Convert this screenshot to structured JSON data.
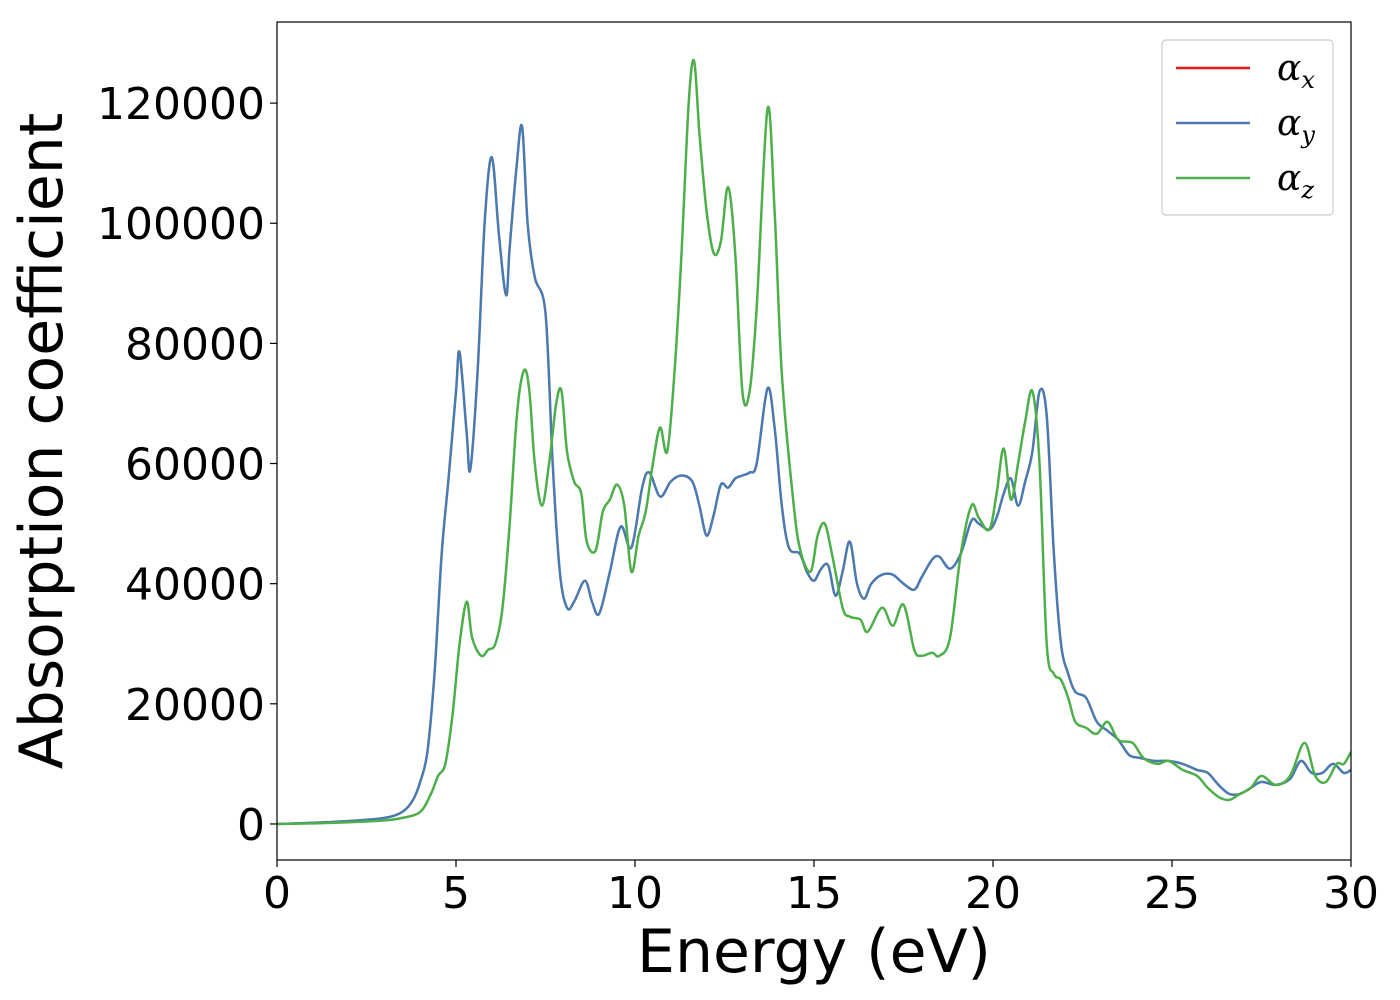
{
  "chart_data": {
    "type": "line",
    "xlabel": "Energy (eV)",
    "ylabel": "Absorption coefficient",
    "xlim": [
      0,
      30
    ],
    "ylim": [
      -6000,
      133500
    ],
    "xticks": [
      0,
      5,
      10,
      15,
      20,
      25,
      30
    ],
    "xtick_labels": [
      "0",
      "5",
      "10",
      "15",
      "20",
      "25",
      "30"
    ],
    "yticks": [
      0,
      20000,
      40000,
      60000,
      80000,
      100000,
      120000
    ],
    "ytick_labels": [
      "0",
      "20000",
      "40000",
      "60000",
      "80000",
      "100000",
      "120000"
    ],
    "grid": false,
    "legend_position": "top-right",
    "series": [
      {
        "name": "α_x",
        "symbol": "α",
        "subscript": "x",
        "color": "#e41a1c",
        "x": [
          0,
          1,
          2,
          3,
          3.5,
          3.8,
          4.0,
          4.2,
          4.4,
          4.6,
          4.8,
          5.0,
          5.1,
          5.3,
          5.4,
          5.6,
          5.8,
          6.0,
          6.2,
          6.4,
          6.5,
          6.7,
          6.85,
          7.0,
          7.2,
          7.5,
          7.7,
          7.9,
          8.1,
          8.3,
          8.6,
          8.8,
          9.0,
          9.3,
          9.6,
          9.9,
          10.2,
          10.4,
          10.7,
          11.0,
          11.3,
          11.6,
          11.8,
          12.0,
          12.2,
          12.4,
          12.6,
          12.8,
          13.0,
          13.2,
          13.4,
          13.7,
          13.9,
          14.1,
          14.3,
          14.6,
          14.8,
          15.0,
          15.2,
          15.4,
          15.6,
          15.8,
          16.0,
          16.2,
          16.4,
          16.6,
          16.9,
          17.2,
          17.5,
          17.8,
          18.0,
          18.3,
          18.5,
          18.8,
          19.1,
          19.4,
          19.6,
          19.9,
          20.1,
          20.3,
          20.5,
          20.7,
          20.9,
          21.1,
          21.3,
          21.5,
          21.7,
          21.9,
          22.1,
          22.3,
          22.6,
          22.9,
          23.2,
          23.5,
          23.8,
          24.1,
          24.5,
          24.9,
          25.3,
          25.7,
          26.0,
          26.3,
          26.6,
          26.9,
          27.2,
          27.5,
          27.9,
          28.3,
          28.6,
          28.9,
          29.2,
          29.5,
          29.8,
          30.0
        ],
        "y": [
          0,
          200,
          500,
          1000,
          2000,
          4000,
          7000,
          12000,
          25000,
          45000,
          58000,
          72000,
          78500,
          65000,
          59000,
          75000,
          100000,
          111000,
          98000,
          88000,
          96000,
          110000,
          116000,
          100000,
          91000,
          85000,
          60000,
          42000,
          36000,
          37000,
          40500,
          37000,
          35000,
          42000,
          49500,
          46000,
          56000,
          58500,
          54500,
          57000,
          58000,
          57000,
          53000,
          48000,
          51500,
          56500,
          56000,
          57500,
          58000,
          58500,
          60000,
          72500,
          66000,
          53000,
          46000,
          45000,
          42000,
          40500,
          42500,
          43000,
          38000,
          42000,
          47000,
          40000,
          37500,
          40000,
          41500,
          41500,
          40000,
          39000,
          41000,
          44000,
          44500,
          42500,
          45000,
          50500,
          50000,
          49000,
          51000,
          55000,
          57500,
          53000,
          57000,
          62000,
          72000,
          68000,
          45000,
          30000,
          25000,
          22000,
          21000,
          17000,
          15500,
          14000,
          11500,
          11000,
          10500,
          10500,
          10000,
          9000,
          8500,
          6500,
          5000,
          5000,
          6000,
          7000,
          6500,
          7500,
          10500,
          8500,
          8500,
          10000,
          8500,
          9000
        ],
        "line_width": 2
      },
      {
        "name": "α_y",
        "symbol": "α",
        "subscript": "y",
        "color": "#4b7ab0",
        "x": [
          0,
          1,
          2,
          3,
          3.5,
          3.8,
          4.0,
          4.2,
          4.4,
          4.6,
          4.8,
          5.0,
          5.1,
          5.3,
          5.4,
          5.6,
          5.8,
          6.0,
          6.2,
          6.4,
          6.5,
          6.7,
          6.85,
          7.0,
          7.2,
          7.5,
          7.7,
          7.9,
          8.1,
          8.3,
          8.6,
          8.8,
          9.0,
          9.3,
          9.6,
          9.9,
          10.2,
          10.4,
          10.7,
          11.0,
          11.3,
          11.6,
          11.8,
          12.0,
          12.2,
          12.4,
          12.6,
          12.8,
          13.0,
          13.2,
          13.4,
          13.7,
          13.9,
          14.1,
          14.3,
          14.6,
          14.8,
          15.0,
          15.2,
          15.4,
          15.6,
          15.8,
          16.0,
          16.2,
          16.4,
          16.6,
          16.9,
          17.2,
          17.5,
          17.8,
          18.0,
          18.3,
          18.5,
          18.8,
          19.1,
          19.4,
          19.6,
          19.9,
          20.1,
          20.3,
          20.5,
          20.7,
          20.9,
          21.1,
          21.3,
          21.5,
          21.7,
          21.9,
          22.1,
          22.3,
          22.6,
          22.9,
          23.2,
          23.5,
          23.8,
          24.1,
          24.5,
          24.9,
          25.3,
          25.7,
          26.0,
          26.3,
          26.6,
          26.9,
          27.2,
          27.5,
          27.9,
          28.3,
          28.6,
          28.9,
          29.2,
          29.5,
          29.8,
          30.0
        ],
        "y": [
          0,
          200,
          500,
          1000,
          2000,
          4000,
          7000,
          12000,
          25000,
          45000,
          58000,
          72000,
          78500,
          65000,
          59000,
          75000,
          100000,
          111000,
          98000,
          88000,
          96000,
          110000,
          116000,
          100000,
          91000,
          85000,
          60000,
          42000,
          36000,
          37000,
          40500,
          37000,
          35000,
          42000,
          49500,
          46000,
          56000,
          58500,
          54500,
          57000,
          58000,
          57000,
          53000,
          48000,
          51500,
          56500,
          56000,
          57500,
          58000,
          58500,
          60000,
          72500,
          66000,
          53000,
          46000,
          45000,
          42000,
          40500,
          42500,
          43000,
          38000,
          42000,
          47000,
          40000,
          37500,
          40000,
          41500,
          41500,
          40000,
          39000,
          41000,
          44000,
          44500,
          42500,
          45000,
          50500,
          50000,
          49000,
          51000,
          55000,
          57500,
          53000,
          57000,
          62000,
          72000,
          68000,
          45000,
          30000,
          25000,
          22000,
          21000,
          17000,
          15500,
          14000,
          11500,
          11000,
          10500,
          10500,
          10000,
          9000,
          8500,
          6500,
          5000,
          5000,
          6000,
          7000,
          6500,
          7500,
          10500,
          8500,
          8500,
          10000,
          8500,
          9000
        ],
        "line_width": 2.5
      },
      {
        "name": "α_z",
        "symbol": "α",
        "subscript": "z",
        "color": "#4daf4a",
        "x": [
          0,
          1,
          2,
          3,
          3.5,
          4.0,
          4.3,
          4.5,
          4.7,
          4.9,
          5.1,
          5.3,
          5.45,
          5.7,
          5.9,
          6.1,
          6.3,
          6.5,
          6.7,
          6.9,
          7.05,
          7.2,
          7.4,
          7.6,
          7.8,
          7.95,
          8.1,
          8.3,
          8.5,
          8.65,
          8.9,
          9.1,
          9.3,
          9.5,
          9.7,
          9.9,
          10.1,
          10.3,
          10.5,
          10.7,
          10.9,
          11.1,
          11.3,
          11.5,
          11.65,
          11.8,
          12.0,
          12.2,
          12.4,
          12.6,
          12.8,
          13.0,
          13.2,
          13.4,
          13.7,
          13.9,
          14.1,
          14.4,
          14.6,
          14.9,
          15.1,
          15.3,
          15.5,
          15.8,
          16.0,
          16.3,
          16.5,
          16.9,
          17.2,
          17.5,
          17.8,
          18.0,
          18.3,
          18.5,
          18.8,
          19.1,
          19.4,
          19.6,
          19.9,
          20.1,
          20.3,
          20.5,
          20.7,
          20.9,
          21.1,
          21.3,
          21.5,
          21.7,
          21.9,
          22.1,
          22.3,
          22.6,
          22.9,
          23.2,
          23.5,
          23.9,
          24.2,
          24.6,
          24.9,
          25.3,
          25.7,
          26.0,
          26.3,
          26.6,
          26.9,
          27.2,
          27.5,
          27.9,
          28.3,
          28.7,
          29.0,
          29.3,
          29.6,
          29.8,
          30.0
        ],
        "y": [
          0,
          100,
          300,
          600,
          1000,
          2000,
          5000,
          8000,
          10000,
          18000,
          30000,
          37000,
          31000,
          28000,
          29000,
          30000,
          36000,
          50000,
          68000,
          75500,
          72000,
          60000,
          53000,
          60000,
          70000,
          72000,
          62000,
          57000,
          55000,
          47000,
          45500,
          52000,
          54000,
          56500,
          53000,
          42000,
          48000,
          52000,
          60000,
          66000,
          62000,
          75000,
          95000,
          120000,
          127000,
          115000,
          102000,
          95000,
          97000,
          106000,
          95000,
          72000,
          72000,
          86000,
          119000,
          102000,
          75000,
          55000,
          46000,
          42000,
          48000,
          50000,
          45000,
          36000,
          34500,
          34000,
          32000,
          36000,
          33000,
          36500,
          29000,
          28000,
          28500,
          28000,
          31000,
          45000,
          53000,
          51000,
          49000,
          55000,
          62500,
          54000,
          60000,
          67000,
          72000,
          60000,
          30000,
          25000,
          24000,
          21000,
          17000,
          16000,
          15000,
          17000,
          14000,
          13500,
          11000,
          10000,
          10500,
          9000,
          8000,
          6000,
          4500,
          4000,
          5000,
          6000,
          8000,
          6500,
          8000,
          13500,
          8000,
          7000,
          10000,
          10000,
          12000
        ],
        "line_width": 2.5
      }
    ]
  }
}
